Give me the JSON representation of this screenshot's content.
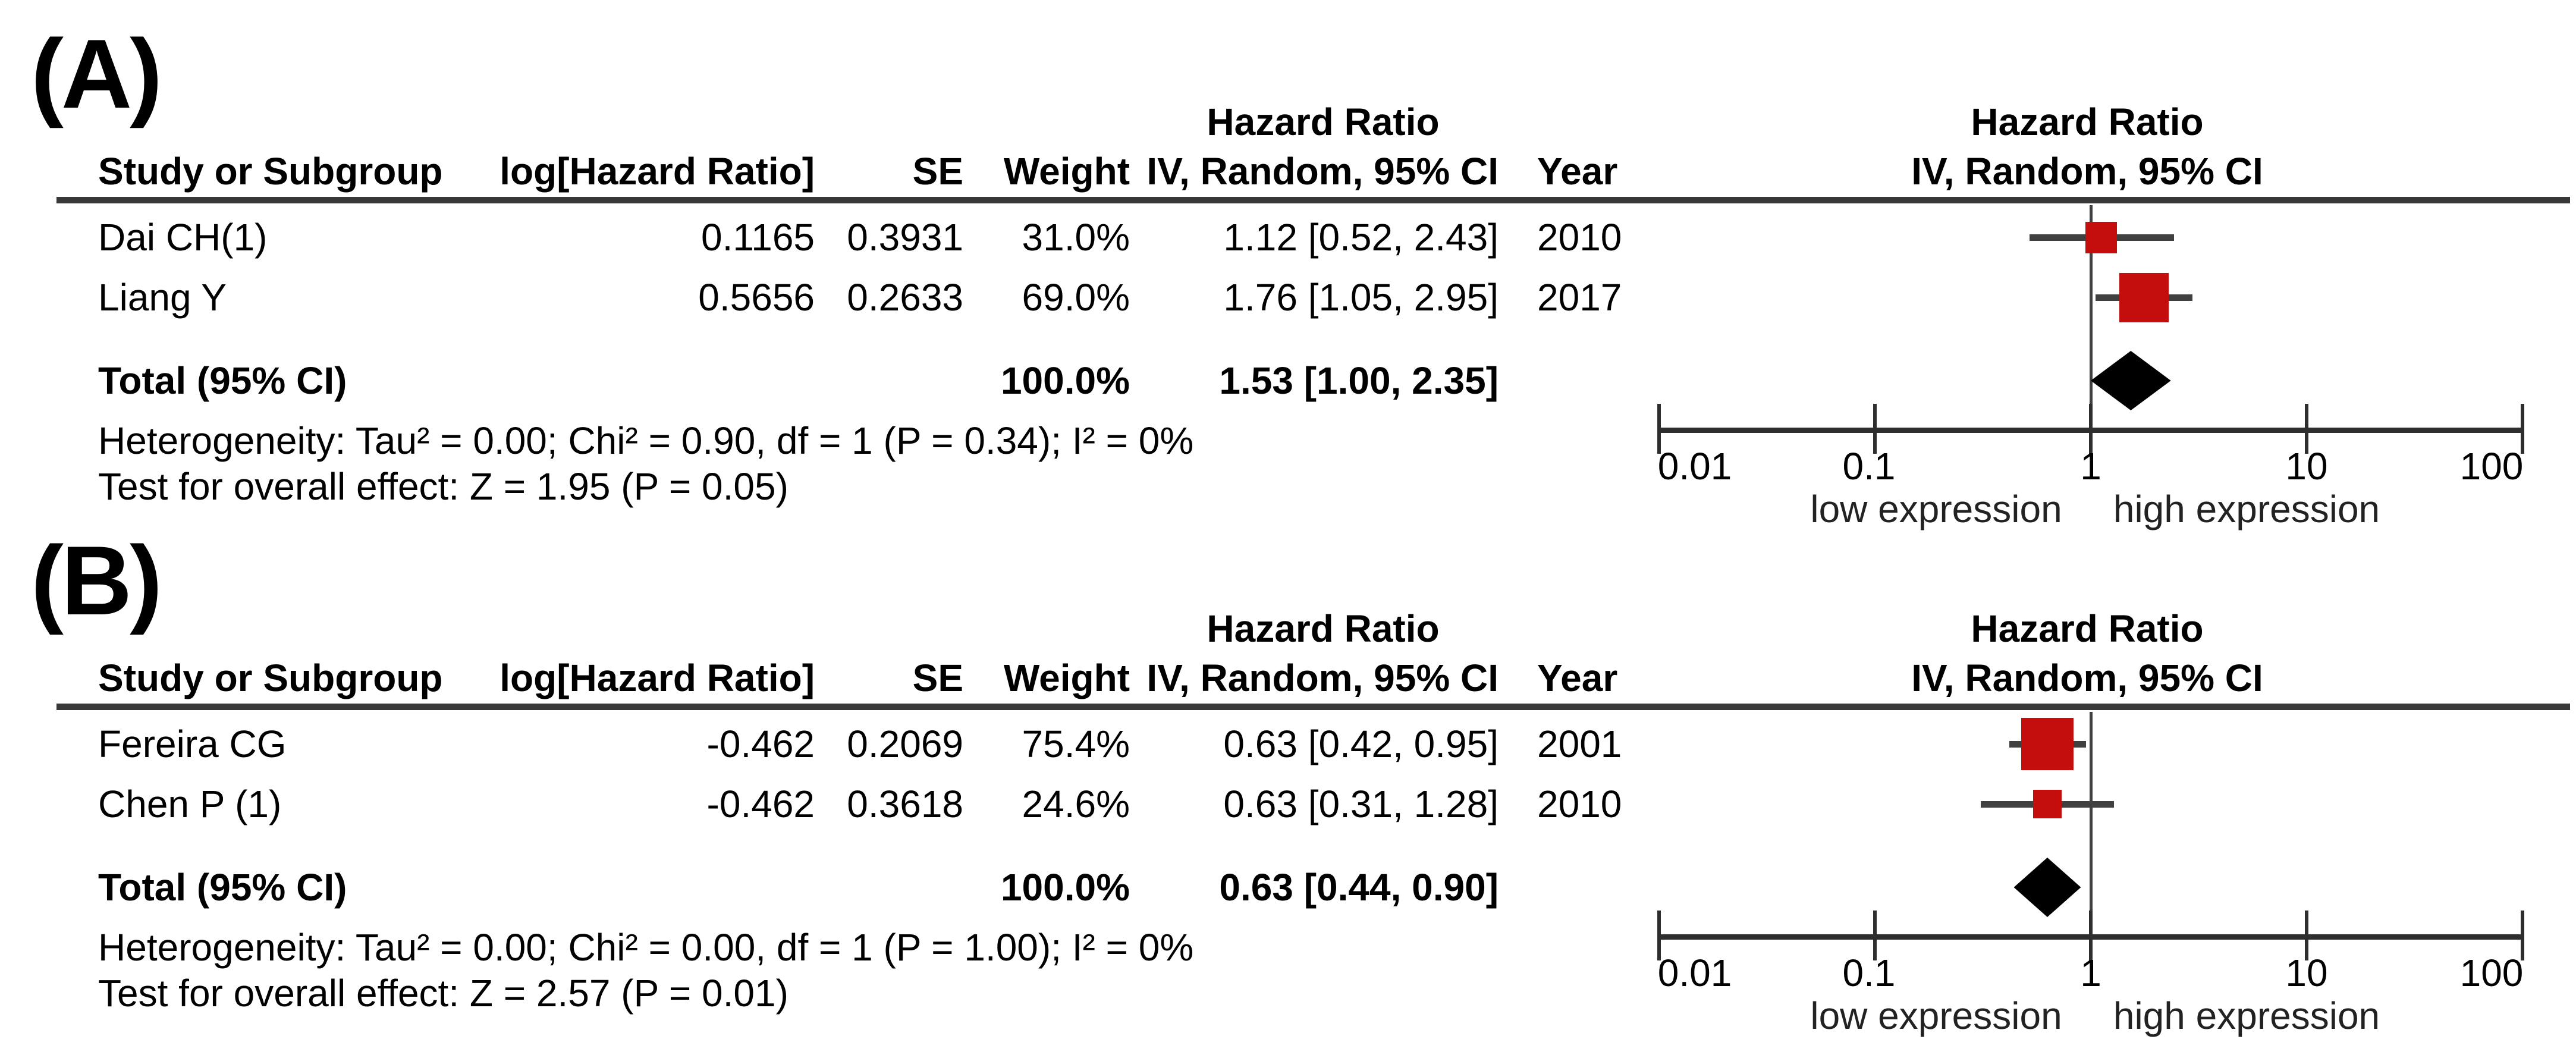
{
  "colors": {
    "marker_red": "#C40D0D",
    "diamond_black": "#000000",
    "line_dark": "#2e2e2e",
    "whisker_gray": "#404040"
  },
  "chart_data": [
    {
      "type": "forest",
      "panel_label": "(A)",
      "effect_measure_header": "Hazard Ratio",
      "method_header": "IV, Random, 95% CI",
      "columns": {
        "study": "Study or Subgroup",
        "log_hr": "log[Hazard Ratio]",
        "se": "SE",
        "weight": "Weight",
        "ci": "IV, Random, 95% CI",
        "year": "Year"
      },
      "studies": [
        {
          "study": "Dai CH(1)",
          "log_hr": "0.1165",
          "se": "0.3931",
          "weight_text": "31.0%",
          "ci_text": "1.12 [0.52, 2.43]",
          "year": "2010",
          "hr": 1.12,
          "lo": 0.52,
          "hi": 2.43,
          "weight": 31.0
        },
        {
          "study": "Liang Y",
          "log_hr": "0.5656",
          "se": "0.2633",
          "weight_text": "69.0%",
          "ci_text": "1.76 [1.05, 2.95]",
          "year": "2017",
          "hr": 1.76,
          "lo": 1.05,
          "hi": 2.95,
          "weight": 69.0
        }
      ],
      "total": {
        "label": "Total (95% CI)",
        "weight_text": "100.0%",
        "ci_text": "1.53 [1.00, 2.35]",
        "hr": 1.53,
        "lo": 1.0,
        "hi": 2.35
      },
      "heterogeneity": "Heterogeneity: Tau² = 0.00; Chi² = 0.90, df = 1 (P = 0.34); I² = 0%",
      "overall_effect": "Test for overall effect: Z = 1.95 (P = 0.05)",
      "axis": {
        "scale": "log",
        "ticks": [
          0.01,
          0.1,
          1,
          10,
          100
        ],
        "xlim": [
          0.01,
          100
        ],
        "left_label": "low expression",
        "right_label": "high expression"
      }
    },
    {
      "type": "forest",
      "panel_label": "(B)",
      "effect_measure_header": "Hazard Ratio",
      "method_header": "IV, Random, 95% CI",
      "columns": {
        "study": "Study or Subgroup",
        "log_hr": "log[Hazard Ratio]",
        "se": "SE",
        "weight": "Weight",
        "ci": "IV, Random, 95% CI",
        "year": "Year"
      },
      "studies": [
        {
          "study": "Fereira CG",
          "log_hr": "-0.462",
          "se": "0.2069",
          "weight_text": "75.4%",
          "ci_text": "0.63 [0.42, 0.95]",
          "year": "2001",
          "hr": 0.63,
          "lo": 0.42,
          "hi": 0.95,
          "weight": 75.4
        },
        {
          "study": "Chen P (1)",
          "log_hr": "-0.462",
          "se": "0.3618",
          "weight_text": "24.6%",
          "ci_text": "0.63 [0.31, 1.28]",
          "year": "2010",
          "hr": 0.63,
          "lo": 0.31,
          "hi": 1.28,
          "weight": 24.6
        }
      ],
      "total": {
        "label": "Total (95% CI)",
        "weight_text": "100.0%",
        "ci_text": "0.63 [0.44, 0.90]",
        "hr": 0.63,
        "lo": 0.44,
        "hi": 0.9
      },
      "heterogeneity": "Heterogeneity: Tau² = 0.00; Chi² = 0.00, df = 1 (P = 1.00); I² = 0%",
      "overall_effect": "Test for overall effect: Z = 2.57 (P = 0.01)",
      "axis": {
        "scale": "log",
        "ticks": [
          0.01,
          0.1,
          1,
          10,
          100
        ],
        "xlim": [
          0.01,
          100
        ],
        "left_label": "low expression",
        "right_label": "high expression"
      }
    }
  ]
}
